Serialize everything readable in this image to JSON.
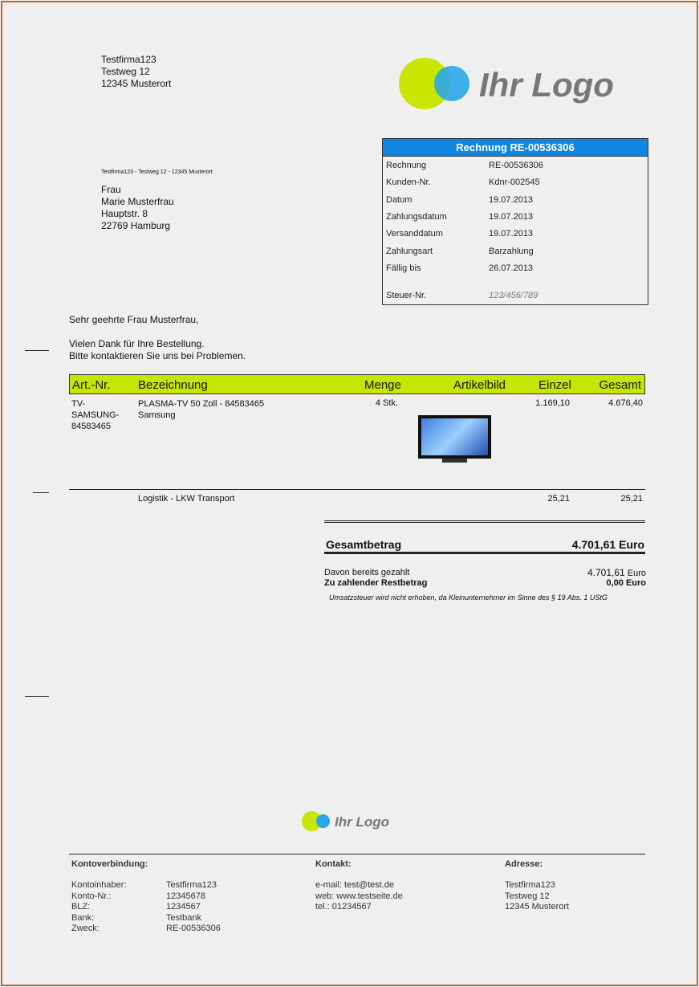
{
  "sender": {
    "name": "Testfirma123",
    "street": "Testweg 12",
    "city": "12345 Musterort",
    "return_line": "Testfirma123 - Testweg 12 - 12345 Musterort"
  },
  "logo": {
    "text": "Ihr Logo",
    "colors": {
      "lime": "#c8e600",
      "blue": "#2aa7e8",
      "text": "#777777"
    }
  },
  "recipient": {
    "salutation": "Frau",
    "name": "Marie Musterfrau",
    "street": "Hauptstr. 8",
    "city": "22769 Hamburg"
  },
  "info_box": {
    "title": "Rechnung RE-00536306",
    "rows": [
      {
        "label": "Rechnung",
        "value": "RE-00536306"
      },
      {
        "label": "Kunden-Nr.",
        "value": "Kdnr-002545"
      },
      {
        "label": "Datum",
        "value": "19.07.2013"
      },
      {
        "label": "Zahlungsdatum",
        "value": "19.07.2013"
      },
      {
        "label": "Versanddatum",
        "value": "19.07.2013"
      },
      {
        "label": "Zahlungsart",
        "value": "Barzahlung"
      },
      {
        "label": "Fällig bis",
        "value": "26.07.2013"
      },
      {
        "label": "Steuer-Nr.",
        "value": "123/456/789"
      }
    ]
  },
  "letter": {
    "greeting": "Sehr geehrte Frau Musterfrau,",
    "line1": "Vielen Dank für Ihre Bestellung.",
    "line2": "Bitte kontaktieren Sie uns bei Problemen."
  },
  "table": {
    "headers": [
      "Art.-Nr.",
      "Bezeichnung",
      "Menge",
      "Artikelbild",
      "Einzel",
      "Gesamt"
    ],
    "items": [
      {
        "art": "TV-SAMSUNG-84583465",
        "desc": "PLASMA-TV 50 Zoll - 84583465",
        "desc2": "Samsung",
        "qty": "4 Stk.",
        "single": "1.169,10",
        "total": "4.676,40"
      },
      {
        "art": "",
        "desc": "Logistik - LKW Transport",
        "qty": "",
        "single": "25,21",
        "total": "25,21"
      }
    ]
  },
  "totals": {
    "label": "Gesamtbetrag",
    "amount": "4.701,61",
    "currency": "Euro",
    "paid_label": "Davon bereits gezahlt",
    "paid": "4.701,61",
    "rest_label": "Zu zahlender Restbetrag",
    "rest": "0,00",
    "note": "Umsatzsteuer wird nicht erhoben, da Kleinunternehmer im Sinne des § 19 Abs. 1 UStG"
  },
  "footer": {
    "bank_title": "Kontoverbindung:",
    "bank": [
      {
        "label": "Kontoinhaber:",
        "value": "Testfirma123"
      },
      {
        "label": "Konto-Nr.:",
        "value": "12345678"
      },
      {
        "label": "BLZ:",
        "value": "1234567"
      },
      {
        "label": "Bank:",
        "value": "Testbank"
      },
      {
        "label": "Zweck:",
        "value": "RE-00536306"
      }
    ],
    "contact_title": "Kontakt:",
    "contact": [
      "e-mail: test@test.de",
      "web: www.testseite.de",
      "tel.: 01234567"
    ],
    "address_title": "Adresse:",
    "address": [
      "Testfirma123",
      "Testweg 12",
      "12345 Musterort"
    ]
  }
}
